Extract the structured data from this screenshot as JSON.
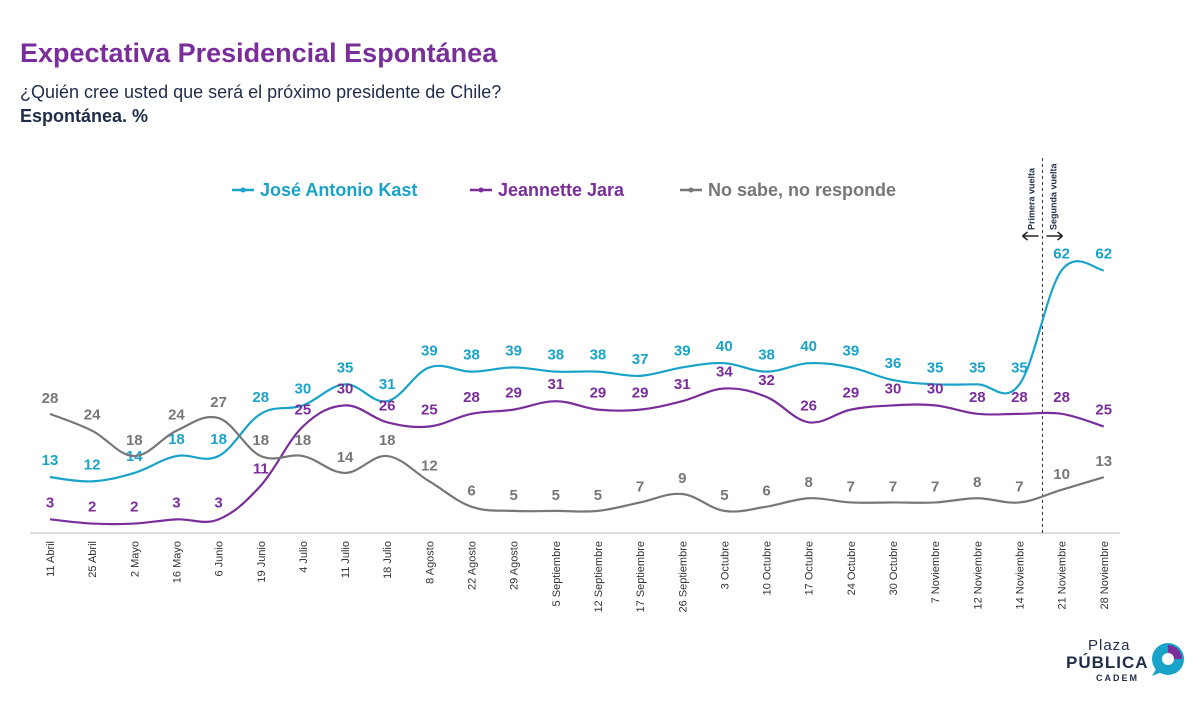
{
  "header": {
    "title": "Expectativa Presidencial Espontánea",
    "subtitle": "¿Quién cree usted que será el próximo presidente de Chile?",
    "subtitle2": "Espontánea. %"
  },
  "logo": {
    "line1": "Plaza",
    "line2": "PÚBLICA",
    "line3": "CADEM"
  },
  "chart_data": {
    "type": "line",
    "x": [
      "11 Abril",
      "25 Abril",
      "2 Mayo",
      "16 Mayo",
      "6 Junio",
      "19 Junio",
      "4 Julio",
      "11 Julio",
      "18 Julio",
      "8 Agosto",
      "22 Agosto",
      "29 Agosto",
      "5 Septiembre",
      "12 Septiembre",
      "17 Septiembre",
      "26 Septiembre",
      "3 Octubre",
      "10 Octubre",
      "17 Octubre",
      "24 Octubre",
      "30 Octubre",
      "7 Noviembre",
      "12 Noviembre",
      "14 Noviembre",
      "21 Noviembre",
      "28 Noviembre"
    ],
    "series": [
      {
        "name": "José Antonio Kast",
        "color": "#1aa3c8",
        "values": [
          13,
          12,
          14,
          18,
          18,
          28,
          30,
          35,
          31,
          39,
          38,
          39,
          38,
          38,
          37,
          39,
          40,
          38,
          40,
          39,
          36,
          35,
          35,
          35,
          62,
          62
        ]
      },
      {
        "name": "Jeannette Jara",
        "color": "#7a2e9a",
        "values": [
          3,
          2,
          2,
          3,
          3,
          11,
          25,
          30,
          26,
          25,
          28,
          29,
          31,
          29,
          29,
          31,
          34,
          32,
          26,
          29,
          30,
          30,
          28,
          28,
          28,
          25
        ]
      },
      {
        "name": "No sabe, no responde",
        "color": "#777777",
        "values": [
          28,
          24,
          18,
          24,
          27,
          18,
          18,
          14,
          18,
          12,
          6,
          5,
          5,
          5,
          7,
          9,
          5,
          6,
          8,
          7,
          7,
          7,
          8,
          7,
          10,
          13
        ]
      }
    ],
    "ylim": [
      0,
      70
    ],
    "legend": "top",
    "grid": false,
    "annotations": {
      "divider_after": "14 Noviembre",
      "left_label": "Primera vuelta",
      "right_label": "Segunda vuelta"
    }
  }
}
